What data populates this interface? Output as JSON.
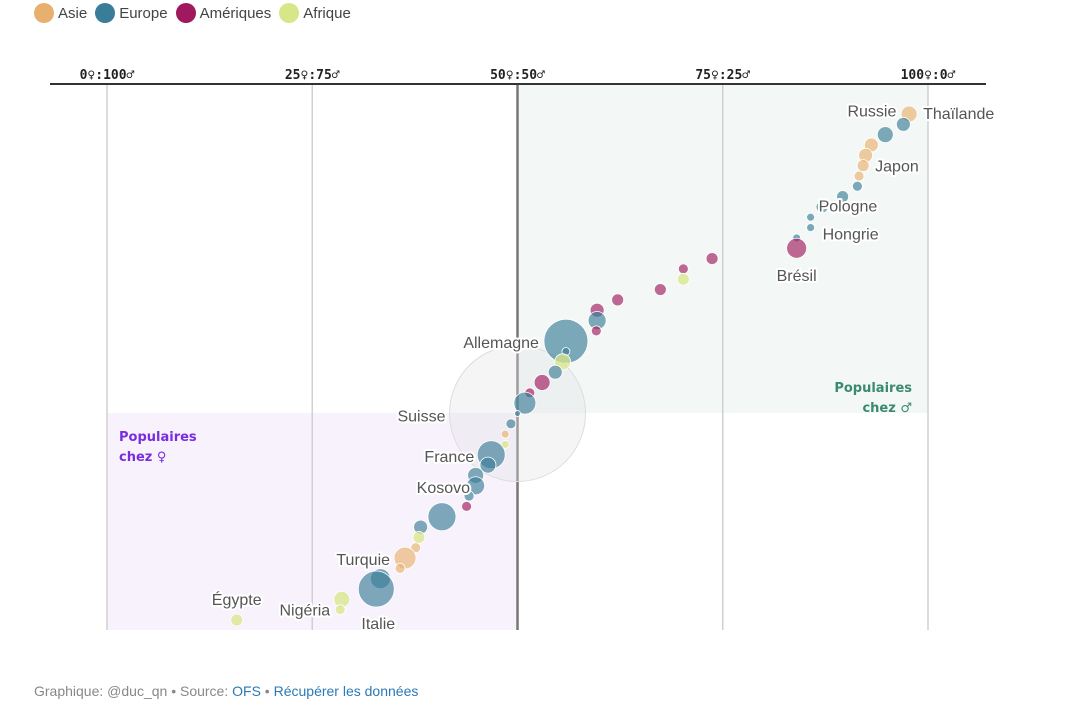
{
  "legend": [
    {
      "label": "Asie",
      "color": "#e8b06e"
    },
    {
      "label": "Europe",
      "color": "#3a7d98"
    },
    {
      "label": "Amériques",
      "color": "#a0185e"
    },
    {
      "label": "Afrique",
      "color": "#d8e68a"
    }
  ],
  "chart_data": {
    "type": "scatter",
    "xlim": [
      0,
      100
    ],
    "x_ticks": [
      "0♀:100♂",
      "25♀:75♂",
      "50♀:50♂",
      "75♀:25♂",
      "100♀:0♂"
    ],
    "x_tick_values": [
      0,
      25,
      50,
      75,
      100
    ],
    "y": "rank (1 = top)",
    "grid": true,
    "legend_placement": "top-left",
    "zones": [
      {
        "label_line1": "Populaires",
        "label_line2": "chez ♂",
        "color": "#3a8a6e",
        "fill": "#f3f8f6"
      },
      {
        "label_line1": "Populaires",
        "label_line2": "chez ♀",
        "color": "#7a2de0",
        "fill": "#f8f2fc"
      }
    ],
    "highlight": {
      "label": "Suisse",
      "x": 50
    },
    "points": [
      {
        "rank": 1,
        "x": 97.7,
        "region": "Asie",
        "size": 8,
        "label": "Thaïlande"
      },
      {
        "rank": 2,
        "x": 97.0,
        "region": "Europe",
        "size": 7,
        "label": "Russie"
      },
      {
        "rank": 3,
        "x": 94.8,
        "region": "Europe",
        "size": 8
      },
      {
        "rank": 4,
        "x": 93.1,
        "region": "Asie",
        "size": 7
      },
      {
        "rank": 5,
        "x": 92.4,
        "region": "Asie",
        "size": 7
      },
      {
        "rank": 6,
        "x": 92.1,
        "region": "Asie",
        "size": 6,
        "label": "Japon"
      },
      {
        "rank": 7,
        "x": 91.6,
        "region": "Asie",
        "size": 5
      },
      {
        "rank": 8,
        "x": 91.4,
        "region": "Europe",
        "size": 5
      },
      {
        "rank": 9,
        "x": 89.6,
        "region": "Europe",
        "size": 6
      },
      {
        "rank": 10,
        "x": 87.1,
        "region": "Europe",
        "size": 6
      },
      {
        "rank": 11,
        "x": 85.7,
        "region": "Europe",
        "size": 4,
        "label": "Pologne"
      },
      {
        "rank": 12,
        "x": 85.7,
        "region": "Europe",
        "size": 4,
        "label": "Hongrie"
      },
      {
        "rank": 13,
        "x": 84.0,
        "region": "Europe",
        "size": 4
      },
      {
        "rank": 14,
        "x": 84.0,
        "region": "Amériques",
        "size": 10,
        "label": "Brésil"
      },
      {
        "rank": 15,
        "x": 73.7,
        "region": "Amériques",
        "size": 6
      },
      {
        "rank": 16,
        "x": 70.2,
        "region": "Amériques",
        "size": 5
      },
      {
        "rank": 17,
        "x": 70.2,
        "region": "Afrique",
        "size": 6
      },
      {
        "rank": 18,
        "x": 67.4,
        "region": "Amériques",
        "size": 6
      },
      {
        "rank": 19,
        "x": 62.2,
        "region": "Amériques",
        "size": 6
      },
      {
        "rank": 20,
        "x": 59.7,
        "region": "Amériques",
        "size": 7
      },
      {
        "rank": 21,
        "x": 59.7,
        "region": "Europe",
        "size": 9
      },
      {
        "rank": 22,
        "x": 59.6,
        "region": "Amériques",
        "size": 5
      },
      {
        "rank": 23,
        "x": 55.9,
        "region": "Europe",
        "size": 22,
        "label": "Allemagne"
      },
      {
        "rank": 24,
        "x": 55.9,
        "region": "Europe",
        "size": 4
      },
      {
        "rank": 25,
        "x": 55.5,
        "region": "Afrique",
        "size": 8
      },
      {
        "rank": 26,
        "x": 54.6,
        "region": "Europe",
        "size": 7
      },
      {
        "rank": 27,
        "x": 53.0,
        "region": "Amériques",
        "size": 8
      },
      {
        "rank": 28,
        "x": 51.5,
        "region": "Amériques",
        "size": 5
      },
      {
        "rank": 29,
        "x": 50.9,
        "region": "Europe",
        "size": 11
      },
      {
        "rank": 30,
        "x": 50.0,
        "region": "Europe",
        "size": 3,
        "label": "Suisse"
      },
      {
        "rank": 31,
        "x": 49.2,
        "region": "Europe",
        "size": 5
      },
      {
        "rank": 32,
        "x": 48.5,
        "region": "Asie",
        "size": 4
      },
      {
        "rank": 33,
        "x": 48.5,
        "region": "Afrique",
        "size": 4
      },
      {
        "rank": 34,
        "x": 46.8,
        "region": "Europe",
        "size": 14,
        "label": "France"
      },
      {
        "rank": 35,
        "x": 46.4,
        "region": "Europe",
        "size": 8
      },
      {
        "rank": 36,
        "x": 44.9,
        "region": "Europe",
        "size": 8
      },
      {
        "rank": 37,
        "x": 44.9,
        "region": "Europe",
        "size": 9
      },
      {
        "rank": 38,
        "x": 44.1,
        "region": "Europe",
        "size": 5,
        "label": "Kosovo"
      },
      {
        "rank": 39,
        "x": 43.8,
        "region": "Amériques",
        "size": 5
      },
      {
        "rank": 40,
        "x": 40.8,
        "region": "Europe",
        "size": 14
      },
      {
        "rank": 41,
        "x": 38.2,
        "region": "Europe",
        "size": 7
      },
      {
        "rank": 42,
        "x": 38.0,
        "region": "Afrique",
        "size": 6
      },
      {
        "rank": 43,
        "x": 37.6,
        "region": "Asie",
        "size": 5
      },
      {
        "rank": 44,
        "x": 36.3,
        "region": "Asie",
        "size": 11,
        "label": "Turquie"
      },
      {
        "rank": 45,
        "x": 35.7,
        "region": "Asie",
        "size": 5
      },
      {
        "rank": 46,
        "x": 33.3,
        "region": "Europe",
        "size": 10
      },
      {
        "rank": 47,
        "x": 32.8,
        "region": "Europe",
        "size": 18,
        "label": "Italie"
      },
      {
        "rank": 48,
        "x": 28.6,
        "region": "Afrique",
        "size": 8
      },
      {
        "rank": 49,
        "x": 28.4,
        "region": "Afrique",
        "size": 5,
        "label": "Nigéria"
      },
      {
        "rank": 50,
        "x": 15.8,
        "region": "Afrique",
        "size": 6,
        "label": "Égypte"
      }
    ]
  },
  "footer": {
    "prefix": "Graphique: @duc_qn • Source: ",
    "source_link": "OFS",
    "separator": " • ",
    "data_link": "Récupérer les données"
  }
}
